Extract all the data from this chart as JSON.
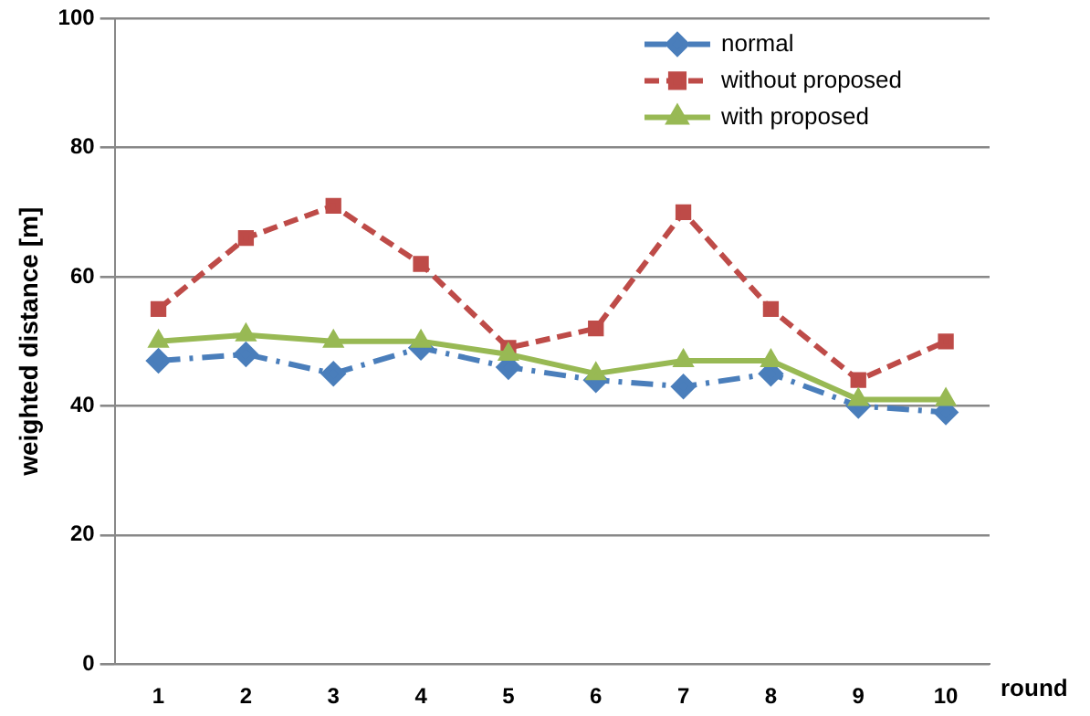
{
  "chart_data": {
    "type": "line",
    "xlabel": "round",
    "ylabel": "weighted distance [m]",
    "categories": [
      "1",
      "2",
      "3",
      "4",
      "5",
      "6",
      "7",
      "8",
      "9",
      "10"
    ],
    "series": [
      {
        "name": "normal",
        "color": "#4a7ebb",
        "marker": "diamond",
        "line_style": "dashed",
        "values": [
          47,
          48,
          45,
          49,
          46,
          44,
          43,
          45,
          40,
          39
        ]
      },
      {
        "name": "without proposed",
        "color": "#be4b48",
        "marker": "square",
        "line_style": "dashed",
        "values": [
          55,
          66,
          71,
          62,
          49,
          52,
          70,
          55,
          44,
          50
        ]
      },
      {
        "name": "with proposed",
        "color": "#98b954",
        "marker": "triangle",
        "line_style": "solid",
        "values": [
          50,
          51,
          50,
          50,
          48,
          45,
          47,
          47,
          41,
          41
        ]
      }
    ],
    "ylim": [
      0,
      100
    ],
    "yticks": [
      0,
      20,
      40,
      60,
      80,
      100
    ],
    "grid": "y",
    "legend": "top right"
  }
}
